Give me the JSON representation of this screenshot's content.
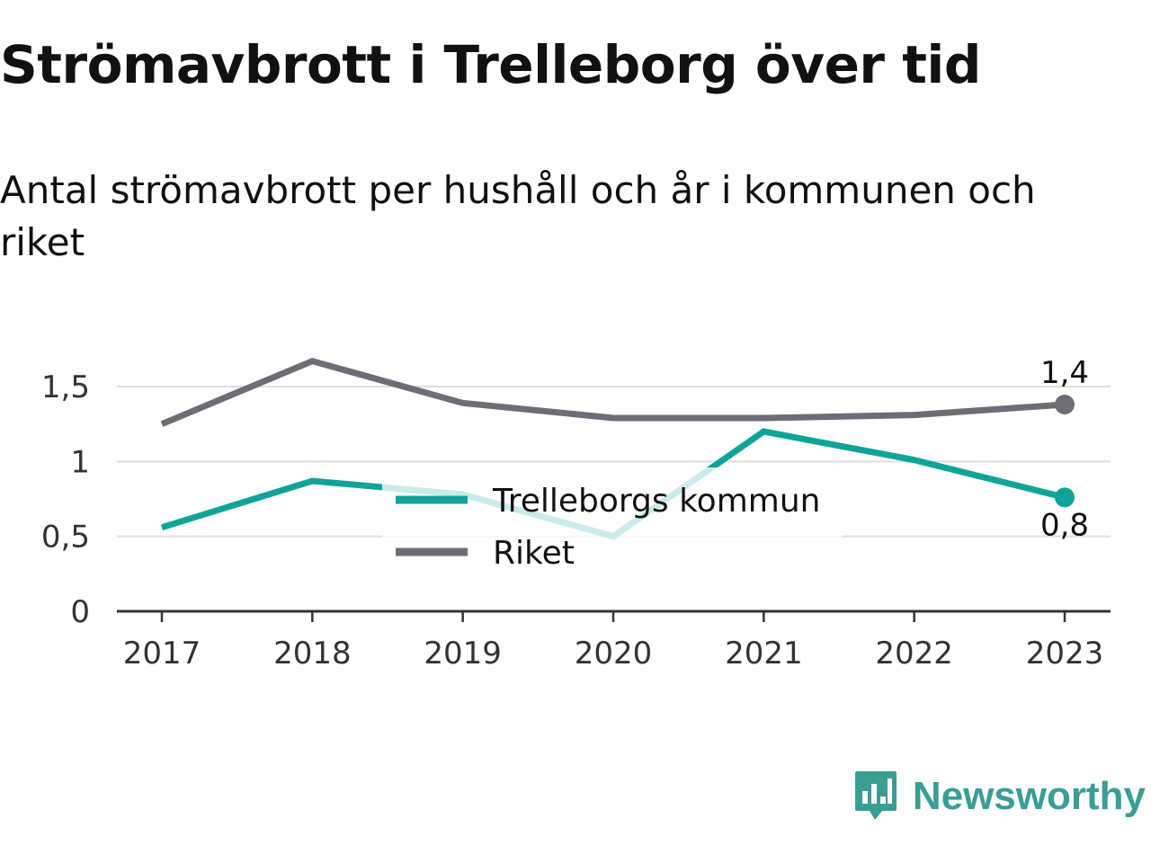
{
  "title": "Strömavbrott i Trelleborg över tid",
  "subtitle": "Antal strömavbrott per hushåll och år i kommunen och riket",
  "brand": {
    "name": "Newsworthy",
    "icon": "bar-chart-speech-bubble-icon",
    "color": "#3a9e93"
  },
  "chart_data": {
    "type": "line",
    "x": [
      "2017",
      "2018",
      "2019",
      "2020",
      "2021",
      "2022",
      "2023"
    ],
    "ylim": [
      0,
      1.75
    ],
    "yticks": [
      0,
      0.5,
      1,
      1.5
    ],
    "ytick_labels": [
      "0",
      "0,5",
      "1",
      "1,5"
    ],
    "grid": true,
    "legend_position": "center",
    "series": [
      {
        "name": "Trelleborgs kommun",
        "color": "#10a499",
        "values": [
          0.56,
          0.87,
          0.78,
          0.5,
          1.2,
          1.01,
          0.76
        ],
        "end_label": "0,8",
        "end_label_position": "below"
      },
      {
        "name": "Riket",
        "color": "#6e6d75",
        "values": [
          1.25,
          1.67,
          1.39,
          1.29,
          1.29,
          1.31,
          1.38
        ],
        "end_label": "1,4",
        "end_label_position": "above"
      }
    ]
  }
}
